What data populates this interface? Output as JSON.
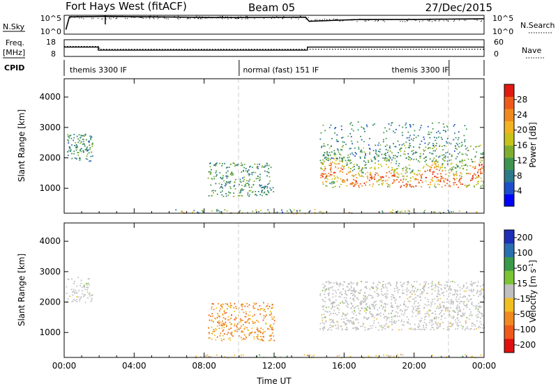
{
  "header": {
    "title": "Fort Hays West (fitACF)",
    "beam": "Beam 05",
    "date": "27/Dec/2015"
  },
  "strips": {
    "nsky_label": "N.Sky",
    "nsearch_label": "N.Search",
    "nsky_ticks": [
      "10^5",
      "10^0"
    ],
    "nsearch_ticks": [
      "10^5",
      "10^0"
    ],
    "freq_label_1": "Freq.",
    "freq_label_2": "[MHz]",
    "freq_ticks": [
      "18",
      "8"
    ],
    "nave_label": "Nave",
    "nave_ticks": [
      "60",
      "0"
    ],
    "cpid_label": "CPID",
    "cpid_segments": [
      {
        "start": 0,
        "end": 10,
        "label": "themis 3300 IF",
        "label_at": 0.2
      },
      {
        "start": 10,
        "end": 22,
        "label": "normal (fast) 151 IF",
        "label_at": 10.1
      },
      {
        "start": 22,
        "end": 24,
        "label": "themis 3300 IF",
        "label_at": 18.6
      }
    ]
  },
  "chart_data": [
    {
      "type": "line",
      "name": "nsky-nsearch-strip",
      "x_range": [
        0,
        24
      ],
      "series": [
        {
          "name": "N.Sky",
          "points": [
            [
              0.1,
              1.2
            ],
            [
              0.3,
              4.6
            ],
            [
              2.3,
              4.7
            ],
            [
              5,
              4.6
            ],
            [
              9,
              4.4
            ],
            [
              13.8,
              4.5
            ],
            [
              14.0,
              3.4
            ],
            [
              15,
              3.6
            ],
            [
              17,
              3.9
            ],
            [
              20,
              3.9
            ],
            [
              24,
              4.1
            ]
          ],
          "style": "solid"
        }
      ]
    },
    {
      "type": "line",
      "name": "freq-nave-strip",
      "x_range": [
        0,
        24
      ],
      "series": [
        {
          "name": "Freq.",
          "unit": "MHz",
          "ylim": [
            8,
            18
          ],
          "points": [
            [
              0,
              13.6
            ],
            [
              1.95,
              13.6
            ],
            [
              1.95,
              11.8
            ],
            [
              13.9,
              11.8
            ],
            [
              13.9,
              13.6
            ],
            [
              24,
              13.6
            ]
          ],
          "style": "solid"
        },
        {
          "name": "Nave",
          "ylim": [
            0,
            60
          ],
          "points": [
            [
              0,
              36
            ],
            [
              2,
              36
            ],
            [
              2,
              26
            ],
            [
              24,
              26
            ]
          ],
          "style": "dotted"
        }
      ]
    },
    {
      "type": "heatmap",
      "name": "power",
      "xlabel": "",
      "ylabel": "Slant Range [km]",
      "xlim": [
        0,
        24
      ],
      "ylim": [
        180,
        4600
      ],
      "x_ticks": [
        0,
        4,
        8,
        12,
        16,
        20,
        24
      ],
      "y_ticks": [
        1000,
        2000,
        3000,
        4000
      ],
      "colorbar": {
        "label": "Power [dB]",
        "range": [
          0,
          32
        ],
        "ticks": [
          4,
          8,
          12,
          16,
          20,
          24,
          28
        ],
        "colors": [
          "#0000ff",
          "#1d4fcb",
          "#2c7a8a",
          "#3f9550",
          "#7fae2f",
          "#c8c21a",
          "#f2b321",
          "#f08a1e",
          "#ef5a1a",
          "#e01a10"
        ]
      },
      "blobs": [
        {
          "t": [
            0.1,
            1.6
          ],
          "r": [
            1900,
            2800
          ],
          "level": [
            6,
            14
          ],
          "density": 0.7
        },
        {
          "t": [
            8.2,
            11.8
          ],
          "r": [
            750,
            1850
          ],
          "level": [
            6,
            16
          ],
          "density": 0.5
        },
        {
          "t": [
            11.0,
            12.0
          ],
          "r": [
            880,
            1100
          ],
          "level": [
            6,
            12
          ],
          "density": 0.6
        },
        {
          "t": [
            14.6,
            24.0
          ],
          "r": [
            1050,
            2450
          ],
          "level": [
            14,
            30
          ],
          "density": 0.6
        },
        {
          "t": [
            14.6,
            23.0
          ],
          "r": [
            1900,
            3200
          ],
          "level": [
            5,
            13
          ],
          "density": 0.2
        },
        {
          "t": [
            6.0,
            24.0
          ],
          "r": [
            180,
            320
          ],
          "level": [
            4,
            24
          ],
          "density": 0.3
        }
      ]
    },
    {
      "type": "heatmap",
      "name": "velocity",
      "xlabel": "Time UT",
      "ylabel": "Slant Range [km]",
      "xlim": [
        0,
        24
      ],
      "ylim": [
        180,
        4600
      ],
      "x_ticks": [
        0,
        4,
        8,
        12,
        16,
        20,
        24
      ],
      "x_tick_labels": [
        "00:00",
        "04:00",
        "08:00",
        "12:00",
        "16:00",
        "20:00",
        "00:00"
      ],
      "y_ticks": [
        1000,
        2000,
        3000,
        4000
      ],
      "colorbar": {
        "label": "Velocity [m s^-1]",
        "ticks": [
          200,
          100,
          50,
          15,
          -15,
          -50,
          -100,
          -200
        ],
        "colors": [
          "#1e2fb8",
          "#2a6fb0",
          "#3a9a4a",
          "#7bc433",
          "#c0c0c0",
          "#f0c020",
          "#f08a20",
          "#ef5a1a",
          "#e01010"
        ]
      },
      "blobs": [
        {
          "t": [
            0.1,
            1.6
          ],
          "r": [
            2000,
            2850
          ],
          "class": "ground-scatter",
          "density": 0.5
        },
        {
          "t": [
            8.2,
            12.0
          ],
          "r": [
            750,
            2000
          ],
          "class": "negative",
          "density": 0.55
        },
        {
          "t": [
            14.6,
            24.0
          ],
          "r": [
            1100,
            2700
          ],
          "class": "ground-scatter",
          "density": 0.6
        },
        {
          "t": [
            6.0,
            24.0
          ],
          "r": [
            180,
            300
          ],
          "class": "mixed",
          "density": 0.25
        }
      ]
    }
  ]
}
